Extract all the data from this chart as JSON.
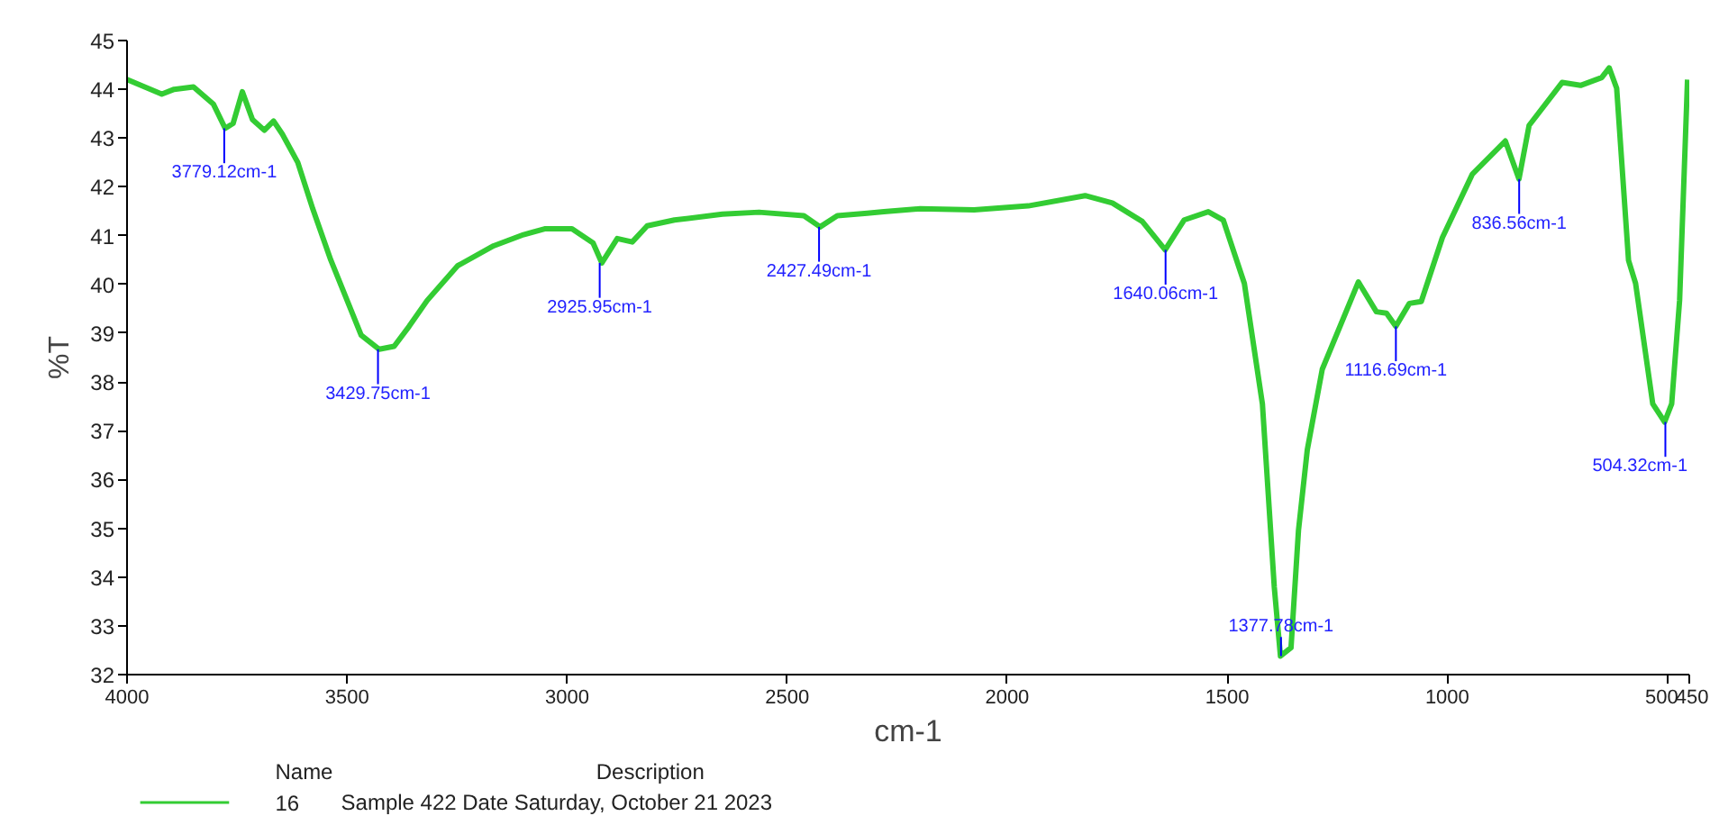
{
  "chart_data": {
    "type": "line",
    "xlabel": "cm-1",
    "ylabel": "%T",
    "xlim": [
      4000,
      450
    ],
    "ylim": [
      32,
      45
    ],
    "xticks": [
      4000,
      3500,
      3000,
      2500,
      2000,
      1500,
      1000,
      500,
      450
    ],
    "yticks": [
      32,
      33,
      34,
      35,
      36,
      37,
      38,
      39,
      40,
      41,
      42,
      43,
      44,
      45
    ],
    "grid": false,
    "legend": "bottom",
    "legend_title": "Name",
    "series": [
      {
        "name": "16",
        "color": "#33cc33",
        "x": [
          4000,
          3921,
          3893,
          3849,
          3804,
          3777,
          3759,
          3738,
          3715,
          3688,
          3667,
          3647,
          3612,
          3578,
          3537,
          3468,
          3427,
          3393,
          3359,
          3318,
          3249,
          3167,
          3099,
          3051,
          2989,
          2941,
          2921,
          2886,
          2852,
          2818,
          2756,
          2647,
          2564,
          2462,
          2425,
          2386,
          2318,
          2280,
          2198,
          2075,
          1952,
          1823,
          1761,
          1693,
          1641,
          1598,
          1543,
          1509,
          1461,
          1420,
          1393,
          1379,
          1355,
          1338,
          1318,
          1284,
          1202,
          1161,
          1138,
          1117,
          1086,
          1059,
          1011,
          943,
          868,
          837,
          814,
          739,
          697,
          649,
          632,
          615,
          588,
          572,
          533,
          506,
          490,
          472,
          454
        ],
        "values": [
          44.2,
          43.9,
          44.0,
          44.05,
          43.7,
          43.2,
          43.3,
          43.95,
          43.38,
          43.16,
          43.35,
          43.08,
          42.5,
          41.55,
          40.5,
          38.96,
          38.67,
          38.73,
          39.14,
          39.67,
          40.38,
          40.79,
          41.02,
          41.14,
          41.14,
          40.85,
          40.44,
          40.94,
          40.87,
          41.2,
          41.32,
          41.44,
          41.48,
          41.41,
          41.18,
          41.41,
          41.46,
          41.49,
          41.55,
          41.53,
          41.61,
          41.82,
          41.67,
          41.29,
          40.71,
          41.32,
          41.49,
          41.32,
          40.02,
          37.55,
          33.79,
          32.38,
          32.55,
          34.96,
          36.61,
          38.26,
          40.05,
          39.44,
          39.41,
          39.14,
          39.61,
          39.65,
          40.96,
          42.26,
          42.94,
          42.16,
          43.26,
          44.14,
          44.08,
          44.24,
          44.44,
          44.02,
          40.49,
          40.02,
          37.55,
          37.18,
          37.55,
          39.67,
          44.2
        ]
      }
    ],
    "annotations": [
      {
        "text": "3779.12cm-1",
        "x": 3779.12,
        "y": 43.2
      },
      {
        "text": "3429.75cm-1",
        "x": 3429.75,
        "y": 38.67
      },
      {
        "text": "2925.95cm-1",
        "x": 2925.95,
        "y": 40.44
      },
      {
        "text": "2427.49cm-1",
        "x": 2427.49,
        "y": 41.18
      },
      {
        "text": "1640.06cm-1",
        "x": 1640.06,
        "y": 40.71
      },
      {
        "text": "1377.78cm-1",
        "x": 1377.78,
        "y": 32.38
      },
      {
        "text": "1116.69cm-1",
        "x": 1116.69,
        "y": 39.14
      },
      {
        "text": "836.56cm-1",
        "x": 836.56,
        "y": 42.16
      },
      {
        "text": "504.32cm-1",
        "x": 504.32,
        "y": 37.18
      },
      "Description",
      "Sample 422 Date Saturday, October 21 2023"
    ]
  }
}
